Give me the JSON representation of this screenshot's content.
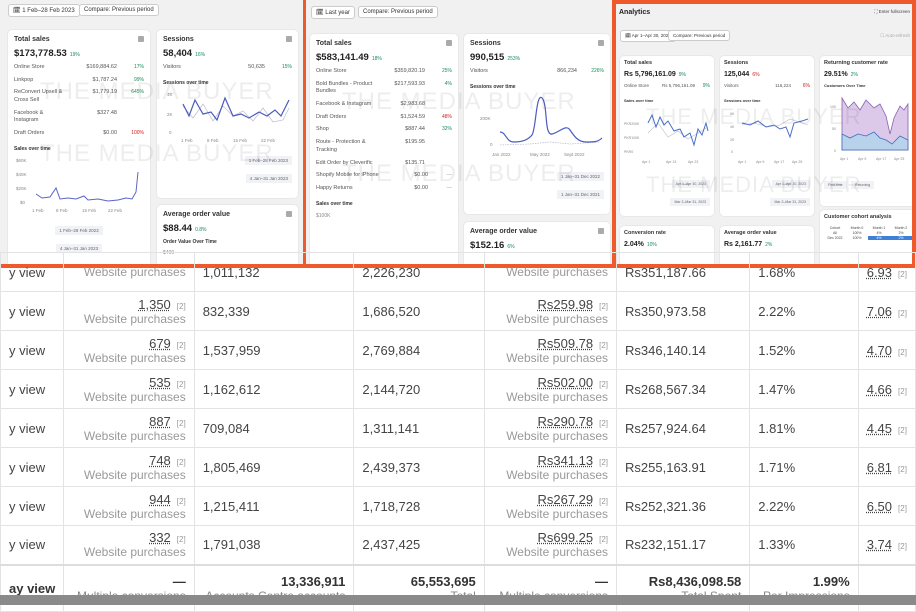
{
  "watermark": "THE MEDIA BUYER",
  "panel1": {
    "date_btn": "1 Feb–28 Feb 2023",
    "compare_btn": "Compare: Previous period",
    "total_sales": {
      "title": "Total sales",
      "value": "$173,778.53",
      "change": "19%",
      "rows": [
        {
          "label": "Online Store",
          "value": "$169,884.62",
          "change": "17%"
        },
        {
          "label": "Linkpop",
          "value": "$1,787.24",
          "change": "99%"
        },
        {
          "label": "ReConvert Upsell & Cross Sell",
          "value": "$1,779.19",
          "change": "645%"
        },
        {
          "label": "Facebook & Instagram",
          "value": "$327.48",
          "change": ""
        },
        {
          "label": "Draft Orders",
          "value": "$0.00",
          "change": "100%"
        }
      ],
      "chart_title": "Sales over time",
      "y_ticks": [
        "$60K",
        "$40K",
        "$20K",
        "$0"
      ],
      "x_ticks": [
        "1 Feb",
        "8 Feb",
        "15 Feb",
        "22 Feb"
      ],
      "legend": [
        "1 Feb–28 Feb 2023",
        "4 Jan–31 Jan 2023"
      ]
    },
    "sessions": {
      "title": "Sessions",
      "value": "58,404",
      "change": "16%",
      "visitors_label": "Visitors",
      "visitors": "50,635",
      "visitors_change": "15%",
      "chart_title": "Sessions over time",
      "y_ticks": [
        "4K",
        "2K",
        "0"
      ],
      "x_ticks": [
        "1 Feb",
        "8 Feb",
        "15 Feb",
        "22 Feb"
      ],
      "legend": [
        "1 Feb–28 Feb 2023",
        "4 Jan–31 Jan 2023"
      ]
    },
    "aov": {
      "title": "Average order value",
      "value": "$88.44",
      "change": "0.8%",
      "chart_title": "Order Value Over Time",
      "y_tick": "$400"
    }
  },
  "panel2": {
    "date_btn": "Last year",
    "compare_btn": "Compare: Previous period",
    "total_sales": {
      "title": "Total sales",
      "value": "$583,141.49",
      "change": "18%",
      "rows": [
        {
          "label": "Online Store",
          "value": "$359,820.19",
          "change": "25%"
        },
        {
          "label": "Bold Bundles - Product Bundles",
          "value": "$217,593.93",
          "change": "4%"
        },
        {
          "label": "Facebook & Instagram",
          "value": "$2,983.68",
          "change": ""
        },
        {
          "label": "Draft Orders",
          "value": "$1,524.59",
          "change": "48%"
        },
        {
          "label": "Shop",
          "value": "$887.44",
          "change": "32%"
        },
        {
          "label": "Route - Protection & Tracking",
          "value": "$195.95",
          "change": ""
        },
        {
          "label": "Edit Order by Cleverific",
          "value": "$135.71",
          "change": ""
        },
        {
          "label": "Shopify Mobile for iPhone",
          "value": "$0.00",
          "change": "—"
        },
        {
          "label": "Happy Returns",
          "value": "$0.00",
          "change": "—"
        }
      ],
      "chart_title": "Sales over time",
      "y_tick": "$100K"
    },
    "sessions": {
      "title": "Sessions",
      "value": "990,515",
      "change": "253%",
      "visitors_label": "Visitors",
      "visitors": "866,234",
      "visitors_change": "226%",
      "chart_title": "Sessions over time",
      "y_ticks": [
        "200K",
        "0"
      ],
      "x_ticks": [
        "Jan 2022",
        "May 2022",
        "Sept 2022"
      ],
      "legend": [
        "1 Jan–31 Dec 2022",
        "1 Jan–31 Dec 2021"
      ]
    },
    "aov": {
      "title": "Average order value",
      "value": "$152.16",
      "change": "6%"
    }
  },
  "panel3": {
    "title": "Analytics",
    "fullscreen": "Enter fullscreen",
    "date_btn": "Apr 1–Apr 30, 2023",
    "compare_btn": "Compare: Previous period",
    "auto_refresh": "Auto-refresh",
    "total_sales": {
      "title": "Total sales",
      "value": "Rs 5,796,161.09",
      "change": "9%",
      "row_label": "Online Store",
      "row_value": "Rs 5,796,161.09",
      "row_change": "9%",
      "chart_title": "Sales over time",
      "y_ticks": [
        "PKR200K",
        "PKR100K",
        "PKR0"
      ],
      "x_ticks": [
        "Apr 1",
        "Apr 13",
        "Apr 23"
      ],
      "legend": [
        "Apr 1–Apr 30, 2023",
        "Mar 2–Mar 31, 2023"
      ]
    },
    "sessions": {
      "title": "Sessions",
      "value": "125,044",
      "change": "6%",
      "visitors_label": "Visitors",
      "visitors": "116,224",
      "visitors_change": "6%",
      "chart_title": "Sessions over time",
      "y_ticks": [
        "6K",
        "4K",
        "2K",
        "0"
      ],
      "x_ticks": [
        "Apr 1",
        "Apr 9",
        "Apr 17",
        "Apr 25"
      ],
      "legend": [
        "Apr 1–Apr 30, 2023",
        "Mar 2–Mar 31, 2023"
      ]
    },
    "returning": {
      "title": "Returning customer rate",
      "value": "29.51%",
      "change": "2%",
      "chart_title": "Customers Over Time",
      "y_ticks": [
        "100",
        "50",
        "0"
      ],
      "x_ticks": [
        "Apr 1",
        "Apr 9",
        "Apr 17",
        "Apr 25"
      ],
      "legend": [
        "First-time",
        "Returning"
      ]
    },
    "conversion": {
      "title": "Conversion rate",
      "value": "2.04%",
      "change": "10%"
    },
    "aov": {
      "title": "Average order value",
      "value": "Rs 2,161.77",
      "change": "2%"
    },
    "cohort": {
      "title": "Customer cohort analysis",
      "headers": [
        "Cohort",
        "Month 0",
        "Month 1",
        "Month 2"
      ],
      "rows": [
        [
          "All",
          "100%",
          "4%",
          "2%"
        ],
        [
          "Dec 2022",
          "100%",
          "4%",
          "2%"
        ]
      ]
    }
  },
  "table": {
    "col0": "y view",
    "note": "[2]",
    "result_sub": "Website purchases",
    "rows": [
      {
        "results": "",
        "reach": "1,011,132",
        "impressions": "2,226,230",
        "cpr": "",
        "spent": "Rs351,187.66",
        "rate": "1.68%",
        "roas": "6.93"
      },
      {
        "results": "1,350",
        "reach": "832,339",
        "impressions": "1,686,520",
        "cpr": "Rs259.98",
        "spent": "Rs350,973.58",
        "rate": "2.22%",
        "roas": "7.06"
      },
      {
        "results": "679",
        "reach": "1,537,959",
        "impressions": "2,769,884",
        "cpr": "Rs509.78",
        "spent": "Rs346,140.14",
        "rate": "1.52%",
        "roas": "4.70"
      },
      {
        "results": "535",
        "reach": "1,162,612",
        "impressions": "2,144,720",
        "cpr": "Rs502.00",
        "spent": "Rs268,567.34",
        "rate": "1.47%",
        "roas": "4.66"
      },
      {
        "results": "887",
        "reach": "709,084",
        "impressions": "1,311,141",
        "cpr": "Rs290.78",
        "spent": "Rs257,924.64",
        "rate": "1.81%",
        "roas": "4.45"
      },
      {
        "results": "748",
        "reach": "1,805,469",
        "impressions": "2,439,373",
        "cpr": "Rs341.13",
        "spent": "Rs255,163.91",
        "rate": "1.71%",
        "roas": "6.81"
      },
      {
        "results": "944",
        "reach": "1,215,411",
        "impressions": "1,718,728",
        "cpr": "Rs267.29",
        "spent": "Rs252,321.36",
        "rate": "2.22%",
        "roas": "6.50"
      },
      {
        "results": "332",
        "reach": "1,791,038",
        "impressions": "2,437,425",
        "cpr": "Rs699.25",
        "spent": "Rs232,151.17",
        "rate": "1.33%",
        "roas": "3.74"
      }
    ],
    "summary": {
      "label": "ay view",
      "results": "—",
      "results_sub": "Multiple conversions",
      "reach": "13,336,911",
      "reach_sub": "Accounts Centre accounts",
      "impressions": "65,553,695",
      "impressions_sub": "Total",
      "cpr": "—",
      "cpr_sub": "Multiple conversions",
      "spent": "Rs8,436,098.58",
      "spent_sub": "Total Spent",
      "rate": "1.99%",
      "rate_sub": "Per Impressions"
    }
  }
}
